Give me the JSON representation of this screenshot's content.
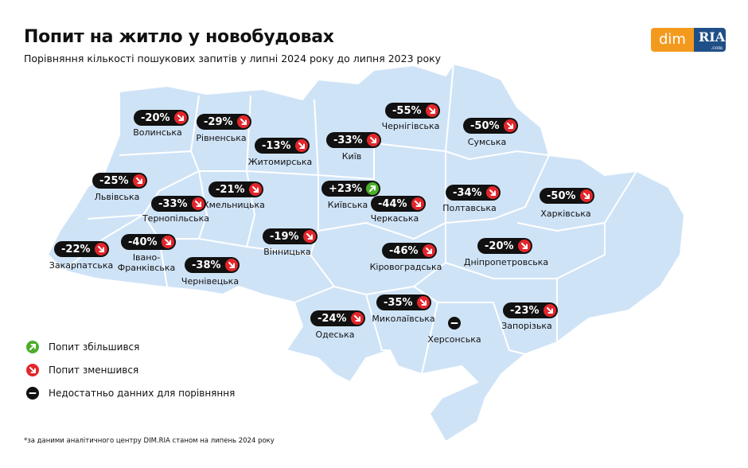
{
  "header": {
    "title": "Попит на житло у новобудовах",
    "subtitle": "Порівняння кількості пошукових запитів у липні 2024 року до липня 2023 року"
  },
  "logo": {
    "left": "dim",
    "right": "RIA",
    "domain": ".com"
  },
  "regions": [
    {
      "name": "Волинська",
      "change": "-20%",
      "trend": "down"
    },
    {
      "name": "Рівненська",
      "change": "-29%",
      "trend": "down"
    },
    {
      "name": "Житомирська",
      "change": "-13%",
      "trend": "down"
    },
    {
      "name": "Київ",
      "change": "-33%",
      "trend": "down"
    },
    {
      "name": "Чернігівська",
      "change": "-55%",
      "trend": "down"
    },
    {
      "name": "Сумська",
      "change": "-50%",
      "trend": "down"
    },
    {
      "name": "Львівська",
      "change": "-25%",
      "trend": "down"
    },
    {
      "name": "Тернопільська",
      "change": "-33%",
      "trend": "down"
    },
    {
      "name": "Хмельницька",
      "change": "-21%",
      "trend": "down"
    },
    {
      "name": "Київська",
      "change": "+23%",
      "trend": "up"
    },
    {
      "name": "Черкаська",
      "change": "-44%",
      "trend": "down"
    },
    {
      "name": "Полтавська",
      "change": "-34%",
      "trend": "down"
    },
    {
      "name": "Харківська",
      "change": "-50%",
      "trend": "down"
    },
    {
      "name": "Закарпатська",
      "change": "-22%",
      "trend": "down"
    },
    {
      "name": "Івано-Франківська",
      "change": "-40%",
      "trend": "down"
    },
    {
      "name": "Вінницька",
      "change": "-19%",
      "trend": "down"
    },
    {
      "name": "Кіровоградська",
      "change": "-46%",
      "trend": "down"
    },
    {
      "name": "Дніпропетровська",
      "change": "-20%",
      "trend": "down"
    },
    {
      "name": "Чернівецька",
      "change": "-38%",
      "trend": "down"
    },
    {
      "name": "Одеська",
      "change": "-24%",
      "trend": "down"
    },
    {
      "name": "Миколаївська",
      "change": "-35%",
      "trend": "down"
    },
    {
      "name": "Херсонська",
      "trend": "none"
    },
    {
      "name": "Запорізька",
      "change": "-23%",
      "trend": "down"
    }
  ],
  "legend": [
    {
      "label": "Попит збільшився",
      "trend": "up"
    },
    {
      "label": "Попит зменшився",
      "trend": "down"
    },
    {
      "label": "Недостатньо данних для порівняння",
      "trend": "none"
    }
  ],
  "footnote": "*за даними аналітичного центру DIM.RIA станом на липень 2024 року"
}
